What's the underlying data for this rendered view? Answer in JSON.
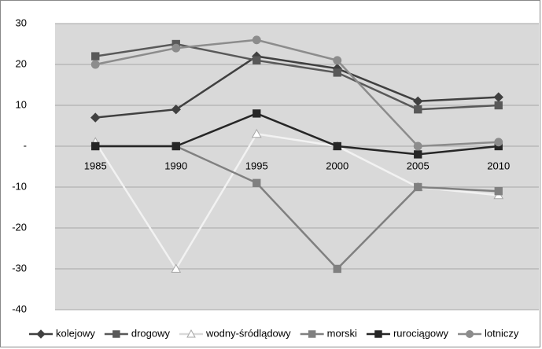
{
  "chart_data": {
    "type": "line",
    "categories": [
      "1985",
      "1990",
      "1995",
      "2000",
      "2005",
      "2010"
    ],
    "series": [
      {
        "name": "kolejowy",
        "color": "#404040",
        "marker": "diamond",
        "values": [
          7,
          9,
          22,
          19,
          11,
          12
        ]
      },
      {
        "name": "drogowy",
        "color": "#595959",
        "marker": "square",
        "values": [
          22,
          25,
          21,
          18,
          9,
          10
        ]
      },
      {
        "name": "wodny-śródlądowy",
        "color": "#f2f2f2",
        "marker": "triangle",
        "values": [
          1,
          -30,
          3,
          0,
          -10,
          -12
        ]
      },
      {
        "name": "morski",
        "color": "#808080",
        "marker": "square",
        "values": [
          0,
          0,
          -9,
          -30,
          -10,
          -11
        ]
      },
      {
        "name": "rurociągowy",
        "color": "#262626",
        "marker": "square",
        "values": [
          0,
          0,
          8,
          0,
          -2,
          0
        ]
      },
      {
        "name": "lotniczy",
        "color": "#8c8c8c",
        "marker": "circle",
        "values": [
          20,
          24,
          26,
          21,
          0,
          1
        ]
      }
    ],
    "ylim": [
      -40,
      30
    ],
    "yticks": [
      -40,
      -30,
      -20,
      -10,
      {
        "value": 0,
        "label": "-"
      },
      10,
      20,
      30
    ],
    "grid": true,
    "legend": "bottom"
  }
}
